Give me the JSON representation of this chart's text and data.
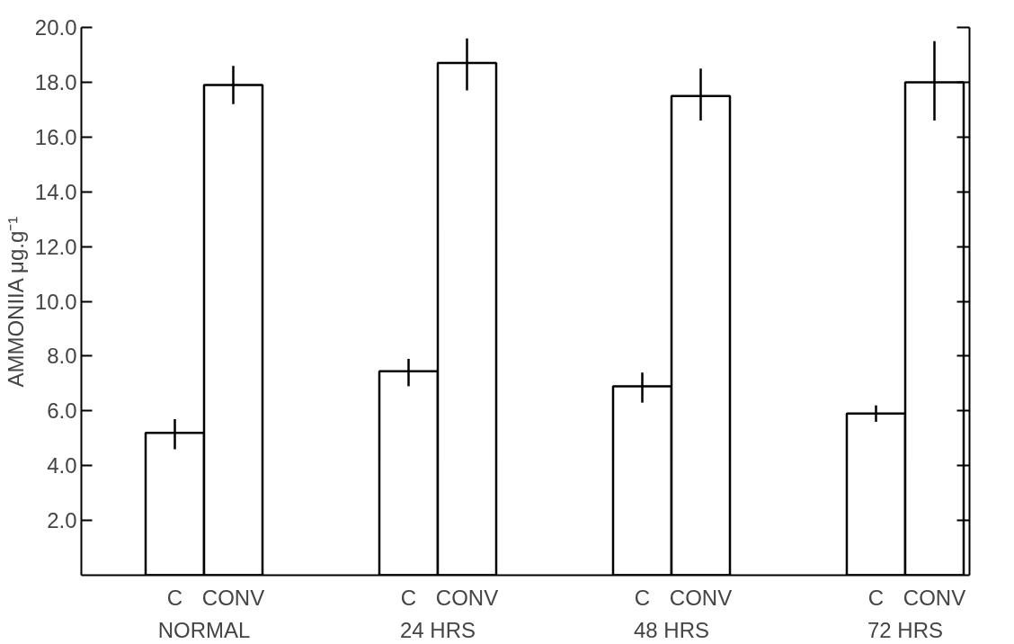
{
  "chart_data": {
    "type": "bar",
    "ylabel": "AMMONIIA μg.g⁻¹",
    "categories": [
      "C",
      "CONV",
      "C",
      "CONV",
      "C",
      "CONV",
      "C",
      "CONV"
    ],
    "values": [
      5.2,
      17.9,
      7.45,
      18.7,
      6.9,
      17.5,
      5.9,
      18.0
    ],
    "errors": [
      [
        4.6,
        5.7
      ],
      [
        17.2,
        18.6
      ],
      [
        6.9,
        7.9
      ],
      [
        17.7,
        19.6
      ],
      [
        6.3,
        7.4
      ],
      [
        16.6,
        18.5
      ],
      [
        5.6,
        6.2
      ],
      [
        16.6,
        19.5
      ]
    ],
    "color": "#ffffff",
    "annotations": [
      "NORMAL",
      "24 HRS",
      "48 HRS",
      "72 HRS"
    ],
    "ylim": [
      0,
      20.0
    ],
    "yticks": [
      {
        "value": 2,
        "label": "2.0"
      },
      {
        "value": 4,
        "label": "4.0"
      },
      {
        "value": 6,
        "label": "6.0"
      },
      {
        "value": 8,
        "label": "8.0"
      },
      {
        "value": 10,
        "label": "10.0"
      },
      {
        "value": 12,
        "label": "12.0"
      },
      {
        "value": 14,
        "label": "14.0"
      },
      {
        "value": 16,
        "label": "16.0"
      },
      {
        "value": 18,
        "label": "18.0"
      },
      {
        "value": 20,
        "label": "20.0"
      }
    ],
    "grid": false
  }
}
